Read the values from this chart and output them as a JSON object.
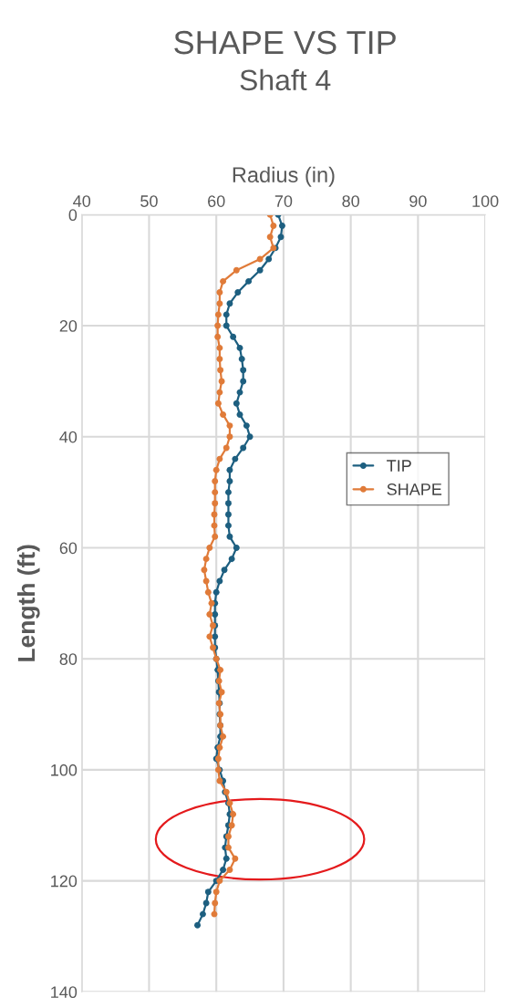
{
  "chart_data": {
    "type": "line",
    "title": "SHAPE VS TIP",
    "subtitle": "Shaft 4",
    "xlabel": "Radius (in)",
    "ylabel": "Length (ft)",
    "xlim": [
      40,
      100
    ],
    "xticks": [
      40,
      50,
      60,
      70,
      80,
      90,
      100
    ],
    "ylim": [
      140,
      0
    ],
    "yticks": [
      0,
      20,
      40,
      60,
      80,
      100,
      120,
      140
    ],
    "grid": true,
    "legend": "right",
    "marker": "circle",
    "line_style": "solid",
    "series": [
      {
        "name": "TIP",
        "color": "#1d5f80",
        "x": [
          69.2,
          69.8,
          69.6,
          68.8,
          67.8,
          66.5,
          64.8,
          63.2,
          62.0,
          61.5,
          61.5,
          62.5,
          63.5,
          63.8,
          64.0,
          64.0,
          63.5,
          63.0,
          63.5,
          64.5,
          65.0,
          64.0,
          62.8,
          62.0,
          62.0,
          61.8,
          61.8,
          61.8,
          61.8,
          62.0,
          63.0,
          62.3,
          61.2,
          60.5,
          60.0,
          59.8,
          59.8,
          59.8,
          59.8,
          59.8,
          60.0,
          60.2,
          60.3,
          60.4,
          60.5,
          60.5,
          60.6,
          60.6,
          60.2,
          60.0,
          60.5,
          61.0,
          61.3,
          61.8,
          62.0,
          61.8,
          61.5,
          61.3,
          61.5,
          61.0,
          60.0,
          58.8,
          58.5,
          58.0,
          57.2
        ],
        "values": [
          0,
          2,
          4,
          6,
          8,
          10,
          12,
          14,
          16,
          18,
          20,
          22,
          24,
          26,
          28,
          30,
          32,
          34,
          36,
          38,
          40,
          42,
          44,
          46,
          48,
          50,
          52,
          54,
          56,
          58,
          60,
          62,
          64,
          66,
          68,
          70,
          72,
          74,
          76,
          78,
          80,
          82,
          84,
          86,
          88,
          90,
          92,
          94,
          96,
          98,
          100,
          102,
          104,
          106,
          108,
          110,
          112,
          114,
          116,
          118,
          120,
          122,
          124,
          126,
          128
        ]
      },
      {
        "name": "SHAPE",
        "color": "#e07b39",
        "x": [
          68.0,
          68.5,
          68.0,
          68.5,
          66.5,
          63.0,
          61.0,
          60.5,
          60.5,
          60.3,
          60.2,
          60.2,
          60.5,
          60.5,
          60.6,
          60.8,
          60.5,
          60.3,
          61.0,
          62.0,
          62.0,
          61.5,
          60.5,
          60.0,
          59.8,
          59.8,
          59.8,
          59.7,
          59.7,
          59.8,
          59.0,
          58.5,
          58.2,
          58.5,
          58.8,
          59.3,
          59.0,
          59.5,
          59.0,
          59.5,
          60.0,
          60.6,
          60.4,
          60.8,
          60.4,
          60.6,
          60.6,
          61.0,
          60.5,
          60.3,
          60.3,
          60.5,
          61.5,
          62.0,
          62.5,
          62.3,
          61.8,
          61.8,
          62.8,
          62.0,
          60.5,
          60.0,
          59.8,
          59.7
        ],
        "values": [
          0,
          2,
          4,
          6,
          8,
          10,
          12,
          14,
          16,
          18,
          20,
          22,
          24,
          26,
          28,
          30,
          32,
          34,
          36,
          38,
          40,
          42,
          44,
          46,
          48,
          50,
          52,
          54,
          56,
          58,
          60,
          62,
          64,
          66,
          68,
          70,
          72,
          74,
          76,
          78,
          80,
          82,
          84,
          86,
          88,
          90,
          92,
          94,
          96,
          98,
          100,
          102,
          104,
          106,
          108,
          110,
          112,
          114,
          116,
          118,
          120,
          122,
          124,
          126
        ]
      }
    ]
  }
}
